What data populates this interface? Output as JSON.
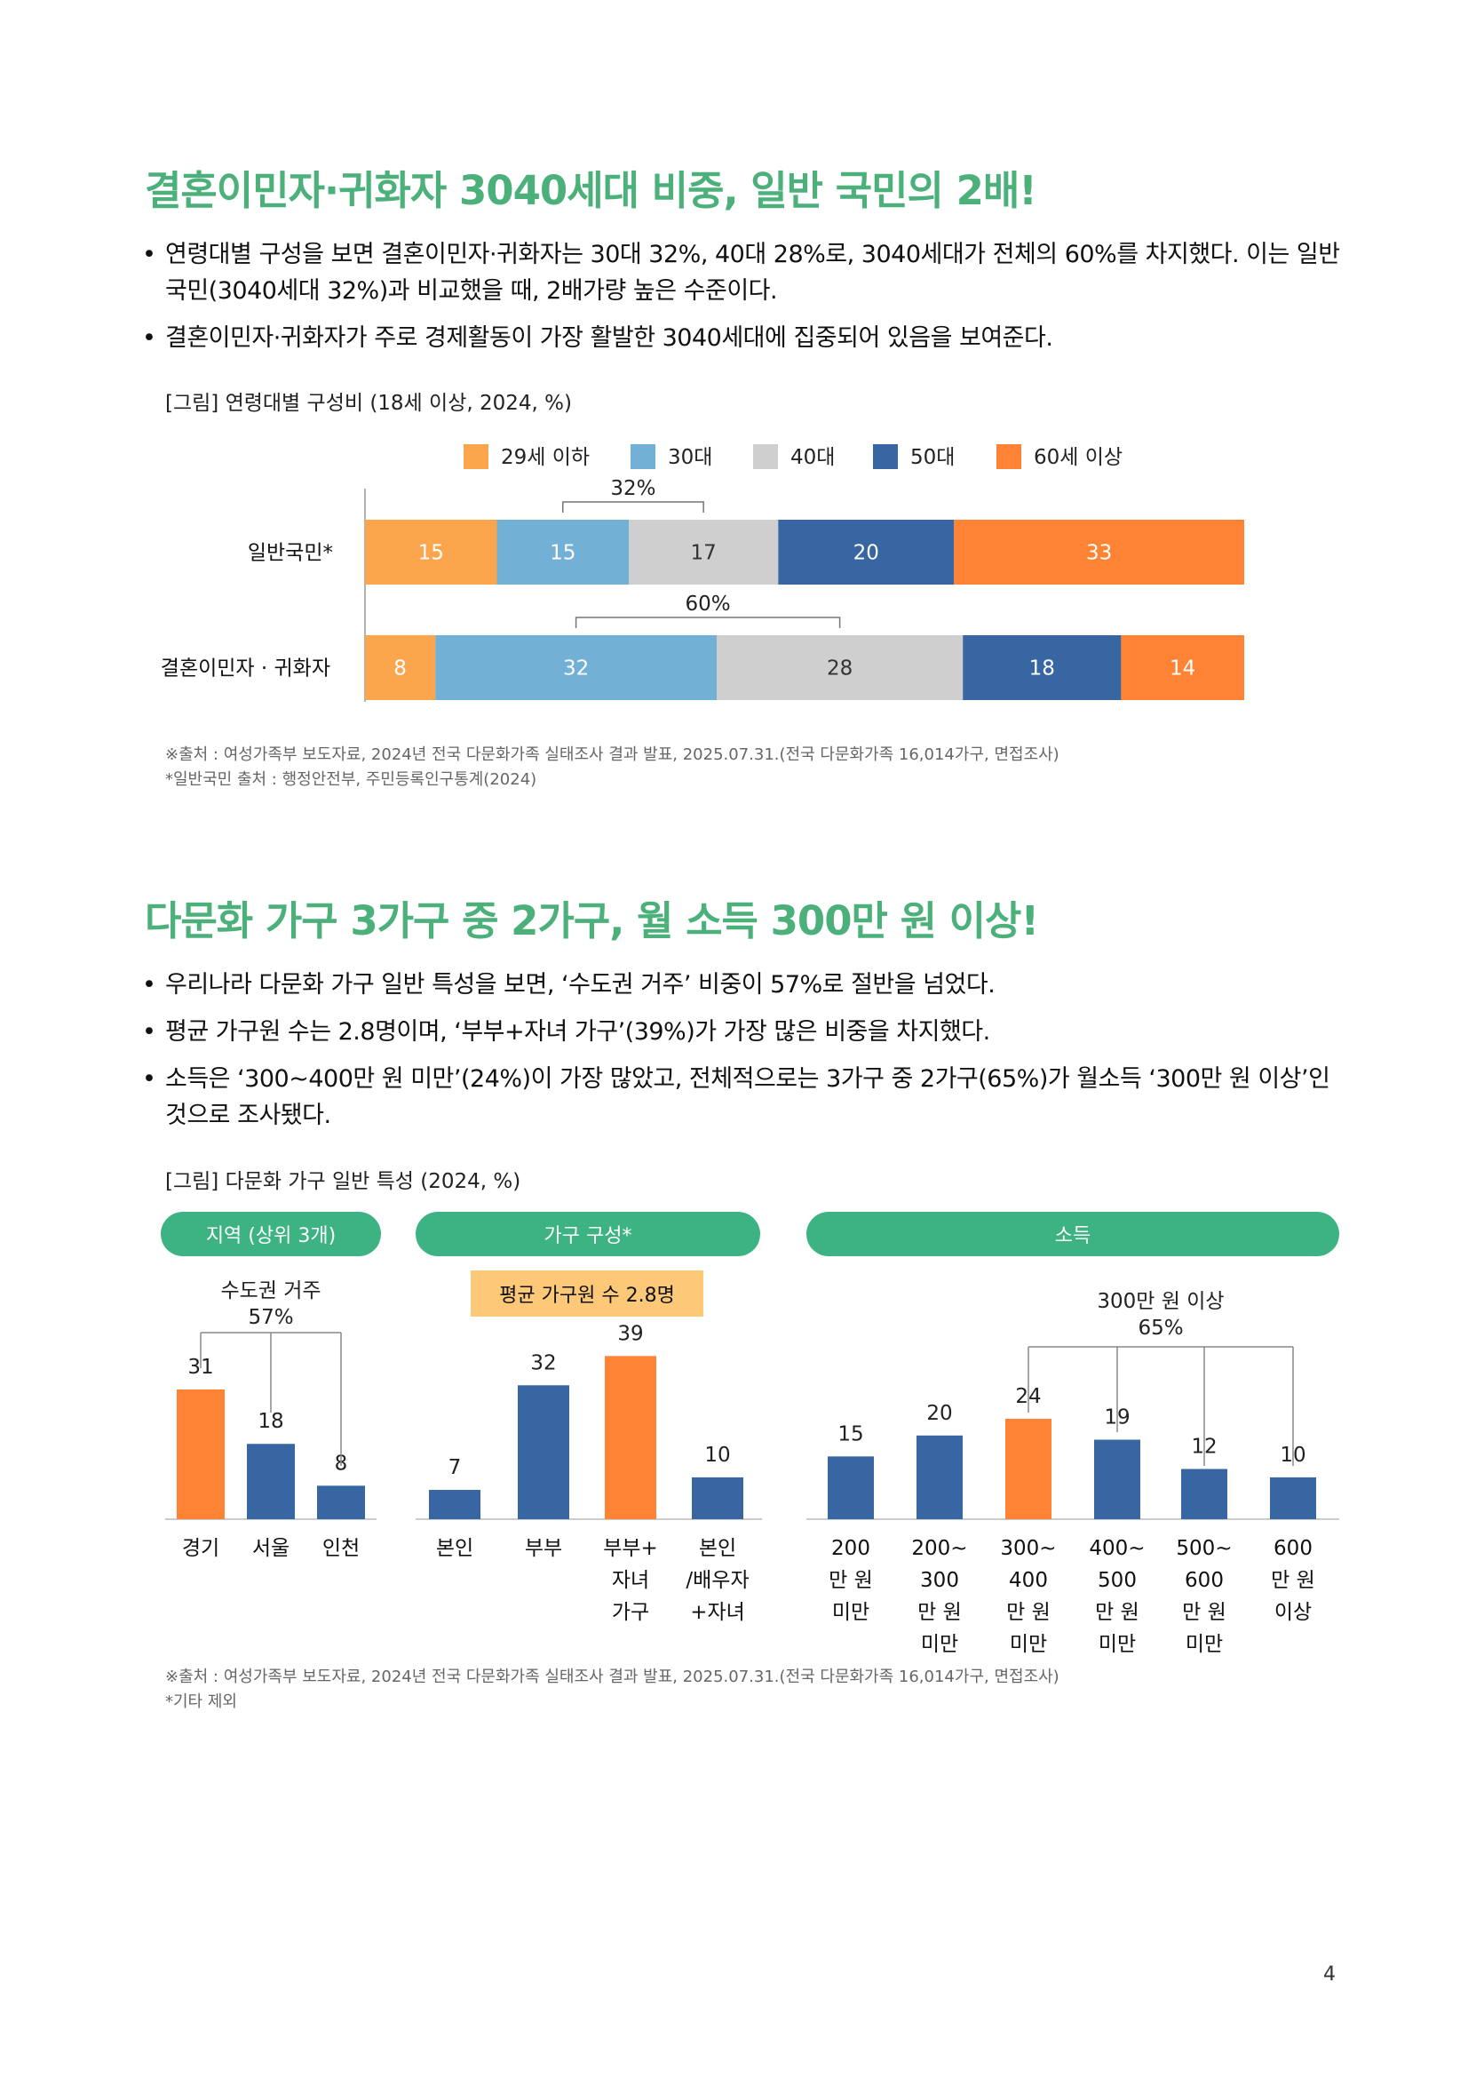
{
  "section1": {
    "title": "결혼이민자·귀화자 3040세대 비중, 일반 국민의 2배!",
    "bullets": [
      "연령대별 구성을 보면 결혼이민자·귀화자는 30대 32%, 40대 28%로, 3040세대가 전체의 60%를 차지했다. 이는 일반국민(3040세대 32%)과 비교했을 때, 2배가량 높은 수준이다.",
      "결혼이민자·귀화자가 주로 경제활동이 가장 활발한 3040세대에 집중되어 있음을 보여준다."
    ],
    "figure_caption": "[그림] 연령대별 구성비 (18세 이상, 2024, %)",
    "sources": [
      "※출처 : 여성가족부 보도자료, 2024년 전국 다문화가족 실태조사 결과 발표, 2025.07.31.(전국 다문화가족 16,014가구, 면접조사)",
      "*일반국민 출처 : 행정안전부, 주민등록인구통계(2024)"
    ]
  },
  "section2": {
    "title": "다문화 가구 3가구 중 2가구, 월 소득 300만 원 이상!",
    "bullets": [
      "우리나라 다문화 가구 일반 특성을 보면, ‘수도권 거주’ 비중이 57%로 절반을 넘었다.",
      "평균 가구원 수는 2.8명이며, ‘부부+자녀 가구’(39%)가 가장 많은 비중을 차지했다.",
      "소득은 ‘300~400만 원 미만’(24%)이 가장 많았고, 전체적으로는 3가구 중 2가구(65%)가 월소득 ‘300만 원 이상’인 것으로 조사됐다."
    ],
    "figure_caption": "[그림] 다문화 가구 일반 특성 (2024, %)",
    "panels": {
      "region": "지역 (상위 3개)",
      "household": "가구 구성*",
      "income": "소득"
    },
    "avg_label": "평균 가구원 수 2.8명",
    "sources": [
      "※출처 : 여성가족부 보도자료, 2024년 전국 다문화가족 실태조사 결과 발표, 2025.07.31.(전국 다문화가족 16,014가구, 면접조사)",
      "*기타 제외"
    ]
  },
  "page_number": "4",
  "colors": {
    "title_green": "#4bb07a",
    "pill_green": "#3db383",
    "orange_light": "#fba54d",
    "blue_light": "#73b0d6",
    "grey": "#cfcfcf",
    "blue_dark": "#3866a3",
    "orange": "#fe8334",
    "avg_box": "#fdc978"
  },
  "chart_data": [
    {
      "type": "bar",
      "orientation": "horizontal-stacked",
      "categories": [
        "일반국민*",
        "결혼이민자 · 귀화자"
      ],
      "series": [
        {
          "name": "29세 이하",
          "values": [
            15,
            8
          ]
        },
        {
          "name": "30대",
          "values": [
            15,
            32
          ]
        },
        {
          "name": "40대",
          "values": [
            17,
            28
          ]
        },
        {
          "name": "50대",
          "values": [
            20,
            18
          ]
        },
        {
          "name": "60세 이상",
          "values": [
            33,
            14
          ]
        }
      ],
      "brackets": [
        "32%",
        "60%"
      ],
      "legend": "top"
    },
    {
      "type": "bar",
      "title": "지역 (상위 3개)",
      "categories": [
        "경기",
        "서울",
        "인천"
      ],
      "values": [
        31,
        18,
        8
      ],
      "highlight": [
        0
      ],
      "bracket": "수도권 거주\n57%"
    },
    {
      "type": "bar",
      "title": "가구 구성*",
      "categories": [
        "본인",
        "부부",
        "부부+\n자녀\n가구",
        "본인\n/배우자\n+자녀"
      ],
      "values": [
        7,
        32,
        39,
        10
      ],
      "highlight": [
        2
      ]
    },
    {
      "type": "bar",
      "title": "소득",
      "categories": [
        "200\n만 원\n미만",
        "200~\n300\n만 원\n미만",
        "300~\n400\n만 원\n미만",
        "400~\n500\n만 원\n미만",
        "500~\n600\n만 원\n미만",
        "600\n만 원\n이상"
      ],
      "values": [
        15,
        20,
        24,
        19,
        12,
        10
      ],
      "highlight": [
        2
      ],
      "bracket": "300만 원 이상\n65%"
    }
  ]
}
